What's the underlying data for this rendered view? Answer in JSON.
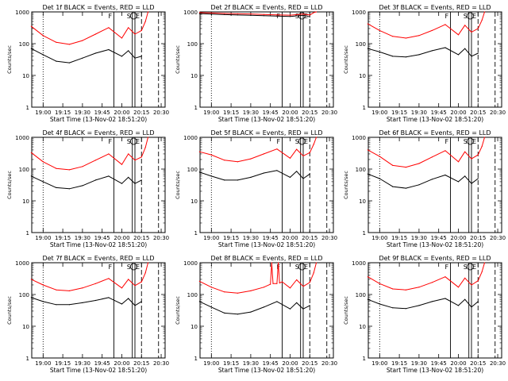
{
  "chart_data": [
    {
      "type": "line",
      "title": "Det 1f BLACK = Events, RED = LLD",
      "xlabel": "Start Time (13-Nov-02 18:51:20)",
      "ylabel": "Counts/sec",
      "xlim": [
        "18:51:20",
        "20:33:00"
      ],
      "ylim": [
        1,
        1000
      ],
      "yscale": "log",
      "x_ticks": [
        "19:00",
        "19:15",
        "19:30",
        "19:45",
        "20:00",
        "20:15",
        "20:30"
      ],
      "y_ticks": [
        "1",
        "10",
        "100",
        "1000"
      ],
      "markers": [
        {
          "label": "F",
          "time": "19:54"
        },
        {
          "label": "S",
          "time": "20:08"
        },
        {
          "label": "E",
          "time": "20:10"
        }
      ],
      "series": [
        {
          "name": "BLACK",
          "color": "#000000",
          "x": [
            "18:51",
            "19:00",
            "19:10",
            "19:20",
            "19:30",
            "19:40",
            "19:50",
            "20:00",
            "20:05",
            "20:10",
            "20:15"
          ],
          "values": [
            70,
            45,
            28,
            25,
            35,
            50,
            65,
            40,
            60,
            35,
            40
          ]
        },
        {
          "name": "RED",
          "color": "#ff0000",
          "x": [
            "18:51",
            "19:00",
            "19:10",
            "19:20",
            "19:30",
            "19:40",
            "19:50",
            "20:00",
            "20:05",
            "20:10",
            "20:15",
            "20:18",
            "20:20"
          ],
          "values": [
            350,
            180,
            110,
            95,
            125,
            200,
            320,
            150,
            320,
            200,
            260,
            500,
            1000
          ]
        }
      ]
    },
    {
      "type": "line",
      "title": "Det 2f BLACK = Events, RED = LLD",
      "xlabel": "Start Time (13-Nov-02 18:51:20)",
      "ylabel": "Counts/sec",
      "xlim": [
        "18:51:20",
        "20:33:00"
      ],
      "ylim": [
        1,
        1000
      ],
      "yscale": "log",
      "x_ticks": [
        "19:00",
        "19:15",
        "19:30",
        "19:45",
        "20:00",
        "20:15",
        "20:30"
      ],
      "y_ticks": [
        "1",
        "10",
        "100",
        "1000"
      ],
      "markers": [
        {
          "label": "F",
          "time": "19:54"
        },
        {
          "label": "S",
          "time": "20:08"
        },
        {
          "label": "E",
          "time": "20:10"
        }
      ],
      "series": [
        {
          "name": "BLACK",
          "color": "#000000",
          "x": [
            "18:51",
            "19:00",
            "19:10",
            "19:20",
            "19:30",
            "19:40",
            "19:50",
            "20:00",
            "20:10",
            "20:15"
          ],
          "values": [
            880,
            850,
            820,
            800,
            780,
            760,
            740,
            720,
            780,
            700
          ]
        },
        {
          "name": "RED",
          "color": "#ff0000",
          "x": [
            "18:51",
            "19:00",
            "19:10",
            "19:20",
            "19:30",
            "19:40",
            "19:50",
            "20:00",
            "20:10",
            "20:15",
            "20:18",
            "20:20"
          ],
          "values": [
            950,
            920,
            890,
            870,
            860,
            830,
            810,
            790,
            850,
            800,
            950,
            1000
          ]
        }
      ]
    },
    {
      "type": "line",
      "title": "Det 3f BLACK = Events, RED = LLD",
      "xlabel": "Start Time (13-Nov-02 18:51:20)",
      "ylabel": "Counts/sec",
      "xlim": [
        "18:51:20",
        "20:33:00"
      ],
      "ylim": [
        1,
        1000
      ],
      "yscale": "log",
      "x_ticks": [
        "19:00",
        "19:15",
        "19:30",
        "19:45",
        "20:00",
        "20:15",
        "20:30"
      ],
      "y_ticks": [
        "1",
        "10",
        "100",
        "1000"
      ],
      "markers": [
        {
          "label": "F",
          "time": "19:54"
        },
        {
          "label": "S",
          "time": "20:08"
        },
        {
          "label": "E",
          "time": "20:10"
        }
      ],
      "series": [
        {
          "name": "BLACK",
          "color": "#000000",
          "x": [
            "18:51",
            "19:00",
            "19:10",
            "19:20",
            "19:30",
            "19:40",
            "19:50",
            "20:00",
            "20:05",
            "20:10",
            "20:15"
          ],
          "values": [
            70,
            55,
            40,
            38,
            45,
            60,
            75,
            45,
            70,
            40,
            50
          ]
        },
        {
          "name": "RED",
          "color": "#ff0000",
          "x": [
            "18:51",
            "19:00",
            "19:10",
            "19:20",
            "19:30",
            "19:40",
            "19:50",
            "20:00",
            "20:05",
            "20:10",
            "20:15",
            "20:18",
            "20:20"
          ],
          "values": [
            420,
            260,
            170,
            150,
            180,
            260,
            400,
            190,
            380,
            230,
            300,
            550,
            1000
          ]
        }
      ]
    },
    {
      "type": "line",
      "title": "Det 4f BLACK = Events, RED = LLD",
      "xlabel": "Start Time (13-Nov-02 18:51:20)",
      "ylabel": "Counts/sec",
      "xlim": [
        "18:51:20",
        "20:33:00"
      ],
      "ylim": [
        1,
        1000
      ],
      "yscale": "log",
      "x_ticks": [
        "19:00",
        "19:15",
        "19:30",
        "19:45",
        "20:00",
        "20:15",
        "20:30"
      ],
      "y_ticks": [
        "1",
        "10",
        "100",
        "1000"
      ],
      "markers": [
        {
          "label": "F",
          "time": "19:54"
        },
        {
          "label": "S",
          "time": "20:08"
        },
        {
          "label": "E",
          "time": "20:10"
        }
      ],
      "series": [
        {
          "name": "BLACK",
          "color": "#000000",
          "x": [
            "18:51",
            "19:00",
            "19:10",
            "19:20",
            "19:30",
            "19:40",
            "19:50",
            "20:00",
            "20:05",
            "20:10",
            "20:15"
          ],
          "values": [
            60,
            40,
            26,
            24,
            30,
            45,
            60,
            35,
            55,
            35,
            45
          ]
        },
        {
          "name": "RED",
          "color": "#ff0000",
          "x": [
            "18:51",
            "19:00",
            "19:10",
            "19:20",
            "19:30",
            "19:40",
            "19:50",
            "20:00",
            "20:05",
            "20:10",
            "20:15",
            "20:18",
            "20:20"
          ],
          "values": [
            330,
            170,
            105,
            95,
            120,
            190,
            300,
            140,
            300,
            190,
            240,
            480,
            1000
          ]
        }
      ]
    },
    {
      "type": "line",
      "title": "Det 5f BLACK = Events, RED = LLD",
      "xlabel": "Start Time (13-Nov-02 18:51:20)",
      "ylabel": "Counts/sec",
      "xlim": [
        "18:51:20",
        "20:33:00"
      ],
      "ylim": [
        1,
        1000
      ],
      "yscale": "log",
      "x_ticks": [
        "19:00",
        "19:15",
        "19:30",
        "19:45",
        "20:00",
        "20:15",
        "20:30"
      ],
      "y_ticks": [
        "1",
        "10",
        "100",
        "1000"
      ],
      "markers": [
        {
          "label": "F",
          "time": "19:54"
        },
        {
          "label": "S",
          "time": "20:08"
        },
        {
          "label": "E",
          "time": "20:10"
        }
      ],
      "series": [
        {
          "name": "BLACK",
          "color": "#000000",
          "x": [
            "18:51",
            "19:00",
            "19:10",
            "19:20",
            "19:30",
            "19:40",
            "19:50",
            "20:00",
            "20:05",
            "20:10",
            "20:15"
          ],
          "values": [
            80,
            60,
            45,
            45,
            55,
            75,
            90,
            55,
            85,
            50,
            70
          ]
        },
        {
          "name": "RED",
          "color": "#ff0000",
          "x": [
            "18:51",
            "19:00",
            "19:10",
            "19:20",
            "19:30",
            "19:40",
            "19:50",
            "20:00",
            "20:05",
            "20:10",
            "20:15",
            "20:18",
            "20:20"
          ],
          "values": [
            350,
            280,
            190,
            170,
            210,
            300,
            430,
            220,
            420,
            260,
            330,
            600,
            1000
          ]
        }
      ]
    },
    {
      "type": "line",
      "title": "Det 6f BLACK = Events, RED = LLD",
      "xlabel": "Start Time (13-Nov-02 18:51:20)",
      "ylabel": "Counts/sec",
      "xlim": [
        "18:51:20",
        "20:33:00"
      ],
      "ylim": [
        1,
        1000
      ],
      "yscale": "log",
      "x_ticks": [
        "19:00",
        "19:15",
        "19:30",
        "19:45",
        "20:00",
        "20:15",
        "20:30"
      ],
      "y_ticks": [
        "1",
        "10",
        "100",
        "1000"
      ],
      "markers": [
        {
          "label": "F",
          "time": "19:54"
        },
        {
          "label": "S",
          "time": "20:08"
        },
        {
          "label": "E",
          "time": "20:10"
        }
      ],
      "series": [
        {
          "name": "BLACK",
          "color": "#000000",
          "x": [
            "18:51",
            "19:00",
            "19:10",
            "19:20",
            "19:30",
            "19:40",
            "19:50",
            "20:00",
            "20:05",
            "20:10",
            "20:15"
          ],
          "values": [
            70,
            50,
            28,
            25,
            32,
            48,
            65,
            40,
            60,
            35,
            50
          ]
        },
        {
          "name": "RED",
          "color": "#ff0000",
          "x": [
            "18:51",
            "19:00",
            "19:10",
            "19:20",
            "19:30",
            "19:40",
            "19:50",
            "20:00",
            "20:05",
            "20:10",
            "20:15",
            "20:18",
            "20:20"
          ],
          "values": [
            400,
            250,
            130,
            115,
            150,
            240,
            380,
            170,
            350,
            210,
            280,
            520,
            1000
          ]
        }
      ]
    },
    {
      "type": "line",
      "title": "Det 7f BLACK = Events, RED = LLD",
      "xlabel": "Start Time (13-Nov-02 18:51:20)",
      "ylabel": "Counts/sec",
      "xlim": [
        "18:51:20",
        "20:33:00"
      ],
      "ylim": [
        1,
        1000
      ],
      "yscale": "log",
      "x_ticks": [
        "19:00",
        "19:15",
        "19:30",
        "19:45",
        "20:00",
        "20:15",
        "20:30"
      ],
      "y_ticks": [
        "1",
        "10",
        "100",
        "1000"
      ],
      "markers": [
        {
          "label": "F",
          "time": "19:54"
        },
        {
          "label": "S",
          "time": "20:08"
        },
        {
          "label": "E",
          "time": "20:10"
        }
      ],
      "series": [
        {
          "name": "BLACK",
          "color": "#000000",
          "x": [
            "18:51",
            "19:00",
            "19:10",
            "19:20",
            "19:30",
            "19:40",
            "19:50",
            "20:00",
            "20:05",
            "20:10",
            "20:15"
          ],
          "values": [
            80,
            60,
            48,
            48,
            55,
            65,
            80,
            50,
            75,
            45,
            60
          ]
        },
        {
          "name": "RED",
          "color": "#ff0000",
          "x": [
            "18:51",
            "19:00",
            "19:10",
            "19:20",
            "19:30",
            "19:40",
            "19:50",
            "20:00",
            "20:05",
            "20:10",
            "20:15",
            "20:18",
            "20:20"
          ],
          "values": [
            300,
            200,
            140,
            130,
            160,
            220,
            320,
            160,
            300,
            190,
            250,
            480,
            1000
          ]
        }
      ]
    },
    {
      "type": "line",
      "title": "Det 8f BLACK = Events, RED = LLD",
      "xlabel": "Start Time (13-Nov-02 18:51:20)",
      "ylabel": "Counts/sec",
      "xlim": [
        "18:51:20",
        "20:33:00"
      ],
      "ylim": [
        1,
        1000
      ],
      "yscale": "log",
      "x_ticks": [
        "19:00",
        "19:15",
        "19:30",
        "19:45",
        "20:00",
        "20:15",
        "20:30"
      ],
      "y_ticks": [
        "1",
        "10",
        "100",
        "1000"
      ],
      "markers": [
        {
          "label": "F",
          "time": "19:54"
        },
        {
          "label": "S",
          "time": "20:08"
        },
        {
          "label": "E",
          "time": "20:10"
        }
      ],
      "series": [
        {
          "name": "BLACK",
          "color": "#000000",
          "x": [
            "18:51",
            "19:00",
            "19:10",
            "19:20",
            "19:30",
            "19:40",
            "19:50",
            "20:00",
            "20:05",
            "20:10",
            "20:15"
          ],
          "values": [
            60,
            40,
            26,
            24,
            28,
            40,
            60,
            35,
            55,
            35,
            45
          ]
        },
        {
          "name": "RED",
          "color": "#ff0000",
          "x": [
            "18:51",
            "19:00",
            "19:10",
            "19:20",
            "19:30",
            "19:40",
            "19:45",
            "19:46",
            "19:47",
            "19:50",
            "19:51",
            "19:52",
            "19:54",
            "20:00",
            "20:05",
            "20:10",
            "20:15",
            "20:18",
            "20:20"
          ],
          "values": [
            260,
            170,
            120,
            110,
            130,
            170,
            210,
            1000,
            220,
            220,
            1000,
            230,
            250,
            160,
            290,
            180,
            240,
            480,
            1000
          ]
        }
      ]
    },
    {
      "type": "line",
      "title": "Det 9f BLACK = Events, RED = LLD",
      "xlabel": "Start Time (13-Nov-02 18:51:20)",
      "ylabel": "Counts/sec",
      "xlim": [
        "18:51:20",
        "20:33:00"
      ],
      "ylim": [
        1,
        1000
      ],
      "yscale": "log",
      "x_ticks": [
        "19:00",
        "19:15",
        "19:30",
        "19:45",
        "20:00",
        "20:15",
        "20:30"
      ],
      "y_ticks": [
        "1",
        "10",
        "100",
        "1000"
      ],
      "markers": [
        {
          "label": "F",
          "time": "19:54"
        },
        {
          "label": "S",
          "time": "20:08"
        },
        {
          "label": "E",
          "time": "20:10"
        }
      ],
      "series": [
        {
          "name": "BLACK",
          "color": "#000000",
          "x": [
            "18:51",
            "19:00",
            "19:10",
            "19:20",
            "19:30",
            "19:40",
            "19:50",
            "20:00",
            "20:05",
            "20:10",
            "20:15"
          ],
          "values": [
            70,
            50,
            38,
            36,
            45,
            60,
            75,
            45,
            70,
            40,
            60
          ]
        },
        {
          "name": "RED",
          "color": "#ff0000",
          "x": [
            "18:51",
            "19:00",
            "19:10",
            "19:20",
            "19:30",
            "19:40",
            "19:50",
            "20:00",
            "20:05",
            "20:10",
            "20:15",
            "20:18",
            "20:20"
          ],
          "values": [
            360,
            220,
            150,
            140,
            170,
            240,
            360,
            170,
            330,
            200,
            270,
            520,
            1000
          ]
        }
      ]
    }
  ]
}
